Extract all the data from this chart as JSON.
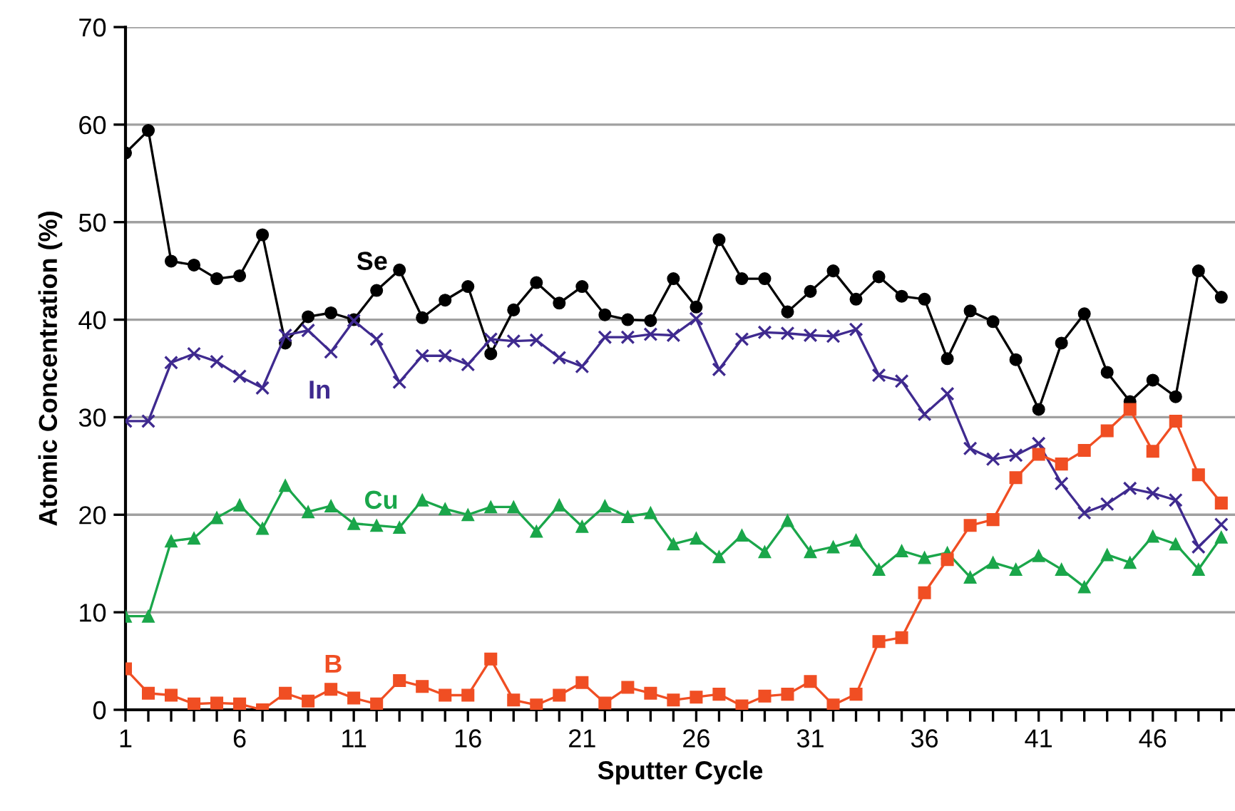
{
  "chart_data": {
    "type": "line",
    "xlabel": "Sputter Cycle",
    "ylabel": "Atomic Concentration (%)",
    "x": [
      1,
      2,
      3,
      4,
      5,
      6,
      7,
      8,
      9,
      10,
      11,
      12,
      13,
      14,
      15,
      16,
      17,
      18,
      19,
      20,
      21,
      22,
      23,
      24,
      25,
      26,
      27,
      28,
      29,
      30,
      31,
      32,
      33,
      34,
      35,
      36,
      37,
      38,
      39,
      40,
      41,
      42,
      43,
      44,
      45,
      46,
      47,
      48,
      49
    ],
    "series": [
      {
        "name": "Se",
        "color": "#000000",
        "marker": "circle",
        "values": [
          57.1,
          59.4,
          46.0,
          45.6,
          44.2,
          44.5,
          48.7,
          37.6,
          40.3,
          40.7,
          40.0,
          43.0,
          45.1,
          40.2,
          42.0,
          43.4,
          36.5,
          41.0,
          43.8,
          41.7,
          43.4,
          40.5,
          40.0,
          39.9,
          44.2,
          41.3,
          48.2,
          44.2,
          44.2,
          40.8,
          42.9,
          45.0,
          42.1,
          44.4,
          42.4,
          42.1,
          36.0,
          40.9,
          39.8,
          35.9,
          30.8,
          37.6,
          40.6,
          34.6,
          31.6,
          33.8,
          32.1,
          45.0,
          42.3
        ]
      },
      {
        "name": "In",
        "color": "#3f2a8f",
        "marker": "cross",
        "values": [
          29.6,
          29.6,
          35.6,
          36.5,
          35.7,
          34.2,
          33.0,
          38.4,
          38.9,
          36.7,
          39.9,
          38.0,
          33.6,
          36.3,
          36.3,
          35.4,
          38.0,
          37.8,
          37.9,
          36.1,
          35.2,
          38.2,
          38.2,
          38.5,
          38.4,
          40.1,
          34.9,
          38.0,
          38.7,
          38.6,
          38.4,
          38.3,
          39.0,
          34.3,
          33.7,
          30.3,
          32.4,
          26.8,
          25.7,
          26.1,
          27.3,
          23.2,
          20.2,
          21.1,
          22.7,
          22.2,
          21.5,
          16.7,
          19.0
        ]
      },
      {
        "name": "Cu",
        "color": "#1aa64a",
        "marker": "triangle",
        "values": [
          9.6,
          9.6,
          17.3,
          17.6,
          19.7,
          21.0,
          18.6,
          23.0,
          20.3,
          20.9,
          19.1,
          18.9,
          18.7,
          21.5,
          20.6,
          20.0,
          20.8,
          20.8,
          18.3,
          21.0,
          18.8,
          20.9,
          19.8,
          20.2,
          17.0,
          17.6,
          15.7,
          17.9,
          16.2,
          19.4,
          16.2,
          16.7,
          17.4,
          14.4,
          16.3,
          15.6,
          16.1,
          13.6,
          15.1,
          14.4,
          15.8,
          14.4,
          12.6,
          15.9,
          15.1,
          17.8,
          17.0,
          14.4,
          17.7
        ]
      },
      {
        "name": "B",
        "color": "#f04e23",
        "marker": "square",
        "values": [
          4.2,
          1.7,
          1.5,
          0.6,
          0.7,
          0.6,
          0.0,
          1.7,
          0.9,
          2.1,
          1.2,
          0.6,
          3.0,
          2.4,
          1.5,
          1.5,
          5.2,
          1.0,
          0.5,
          1.5,
          2.8,
          0.7,
          2.3,
          1.7,
          1.0,
          1.3,
          1.6,
          0.4,
          1.4,
          1.6,
          2.9,
          0.5,
          1.6,
          7.0,
          7.4,
          12.0,
          15.4,
          18.9,
          19.5,
          23.8,
          26.2,
          25.2,
          26.6,
          28.6,
          30.8,
          26.5,
          29.6,
          24.1,
          21.2
        ]
      }
    ],
    "xlim": [
      1,
      49.6
    ],
    "xticks": [
      1,
      {
        "value": 2,
        "label": null
      },
      {
        "value": 3,
        "label": null
      },
      {
        "value": 4,
        "label": null
      },
      {
        "value": 5,
        "label": null
      },
      6,
      {
        "value": 7,
        "label": null
      },
      {
        "value": 8,
        "label": null
      },
      {
        "value": 9,
        "label": null
      },
      {
        "value": 10,
        "label": null
      },
      11,
      {
        "value": 12,
        "label": null
      },
      {
        "value": 13,
        "label": null
      },
      {
        "value": 14,
        "label": null
      },
      {
        "value": 15,
        "label": null
      },
      16,
      {
        "value": 17,
        "label": null
      },
      {
        "value": 18,
        "label": null
      },
      {
        "value": 19,
        "label": null
      },
      {
        "value": 20,
        "label": null
      },
      21,
      {
        "value": 22,
        "label": null
      },
      {
        "value": 23,
        "label": null
      },
      {
        "value": 24,
        "label": null
      },
      {
        "value": 25,
        "label": null
      },
      26,
      {
        "value": 27,
        "label": null
      },
      {
        "value": 28,
        "label": null
      },
      {
        "value": 29,
        "label": null
      },
      {
        "value": 30,
        "label": null
      },
      31,
      {
        "value": 32,
        "label": null
      },
      {
        "value": 33,
        "label": null
      },
      {
        "value": 34,
        "label": null
      },
      {
        "value": 35,
        "label": null
      },
      36,
      {
        "value": 37,
        "label": null
      },
      {
        "value": 38,
        "label": null
      },
      {
        "value": 39,
        "label": null
      },
      {
        "value": 40,
        "label": null
      },
      41,
      {
        "value": 42,
        "label": null
      },
      {
        "value": 43,
        "label": null
      },
      {
        "value": 44,
        "label": null
      },
      {
        "value": 45,
        "label": null
      },
      46,
      {
        "value": 47,
        "label": null
      },
      {
        "value": 48,
        "label": null
      },
      {
        "value": 49,
        "label": null
      }
    ],
    "ylim": [
      0,
      70
    ],
    "yticks": [
      0,
      10,
      20,
      30,
      40,
      50,
      60,
      70
    ],
    "grid": "y",
    "legend": false
  }
}
